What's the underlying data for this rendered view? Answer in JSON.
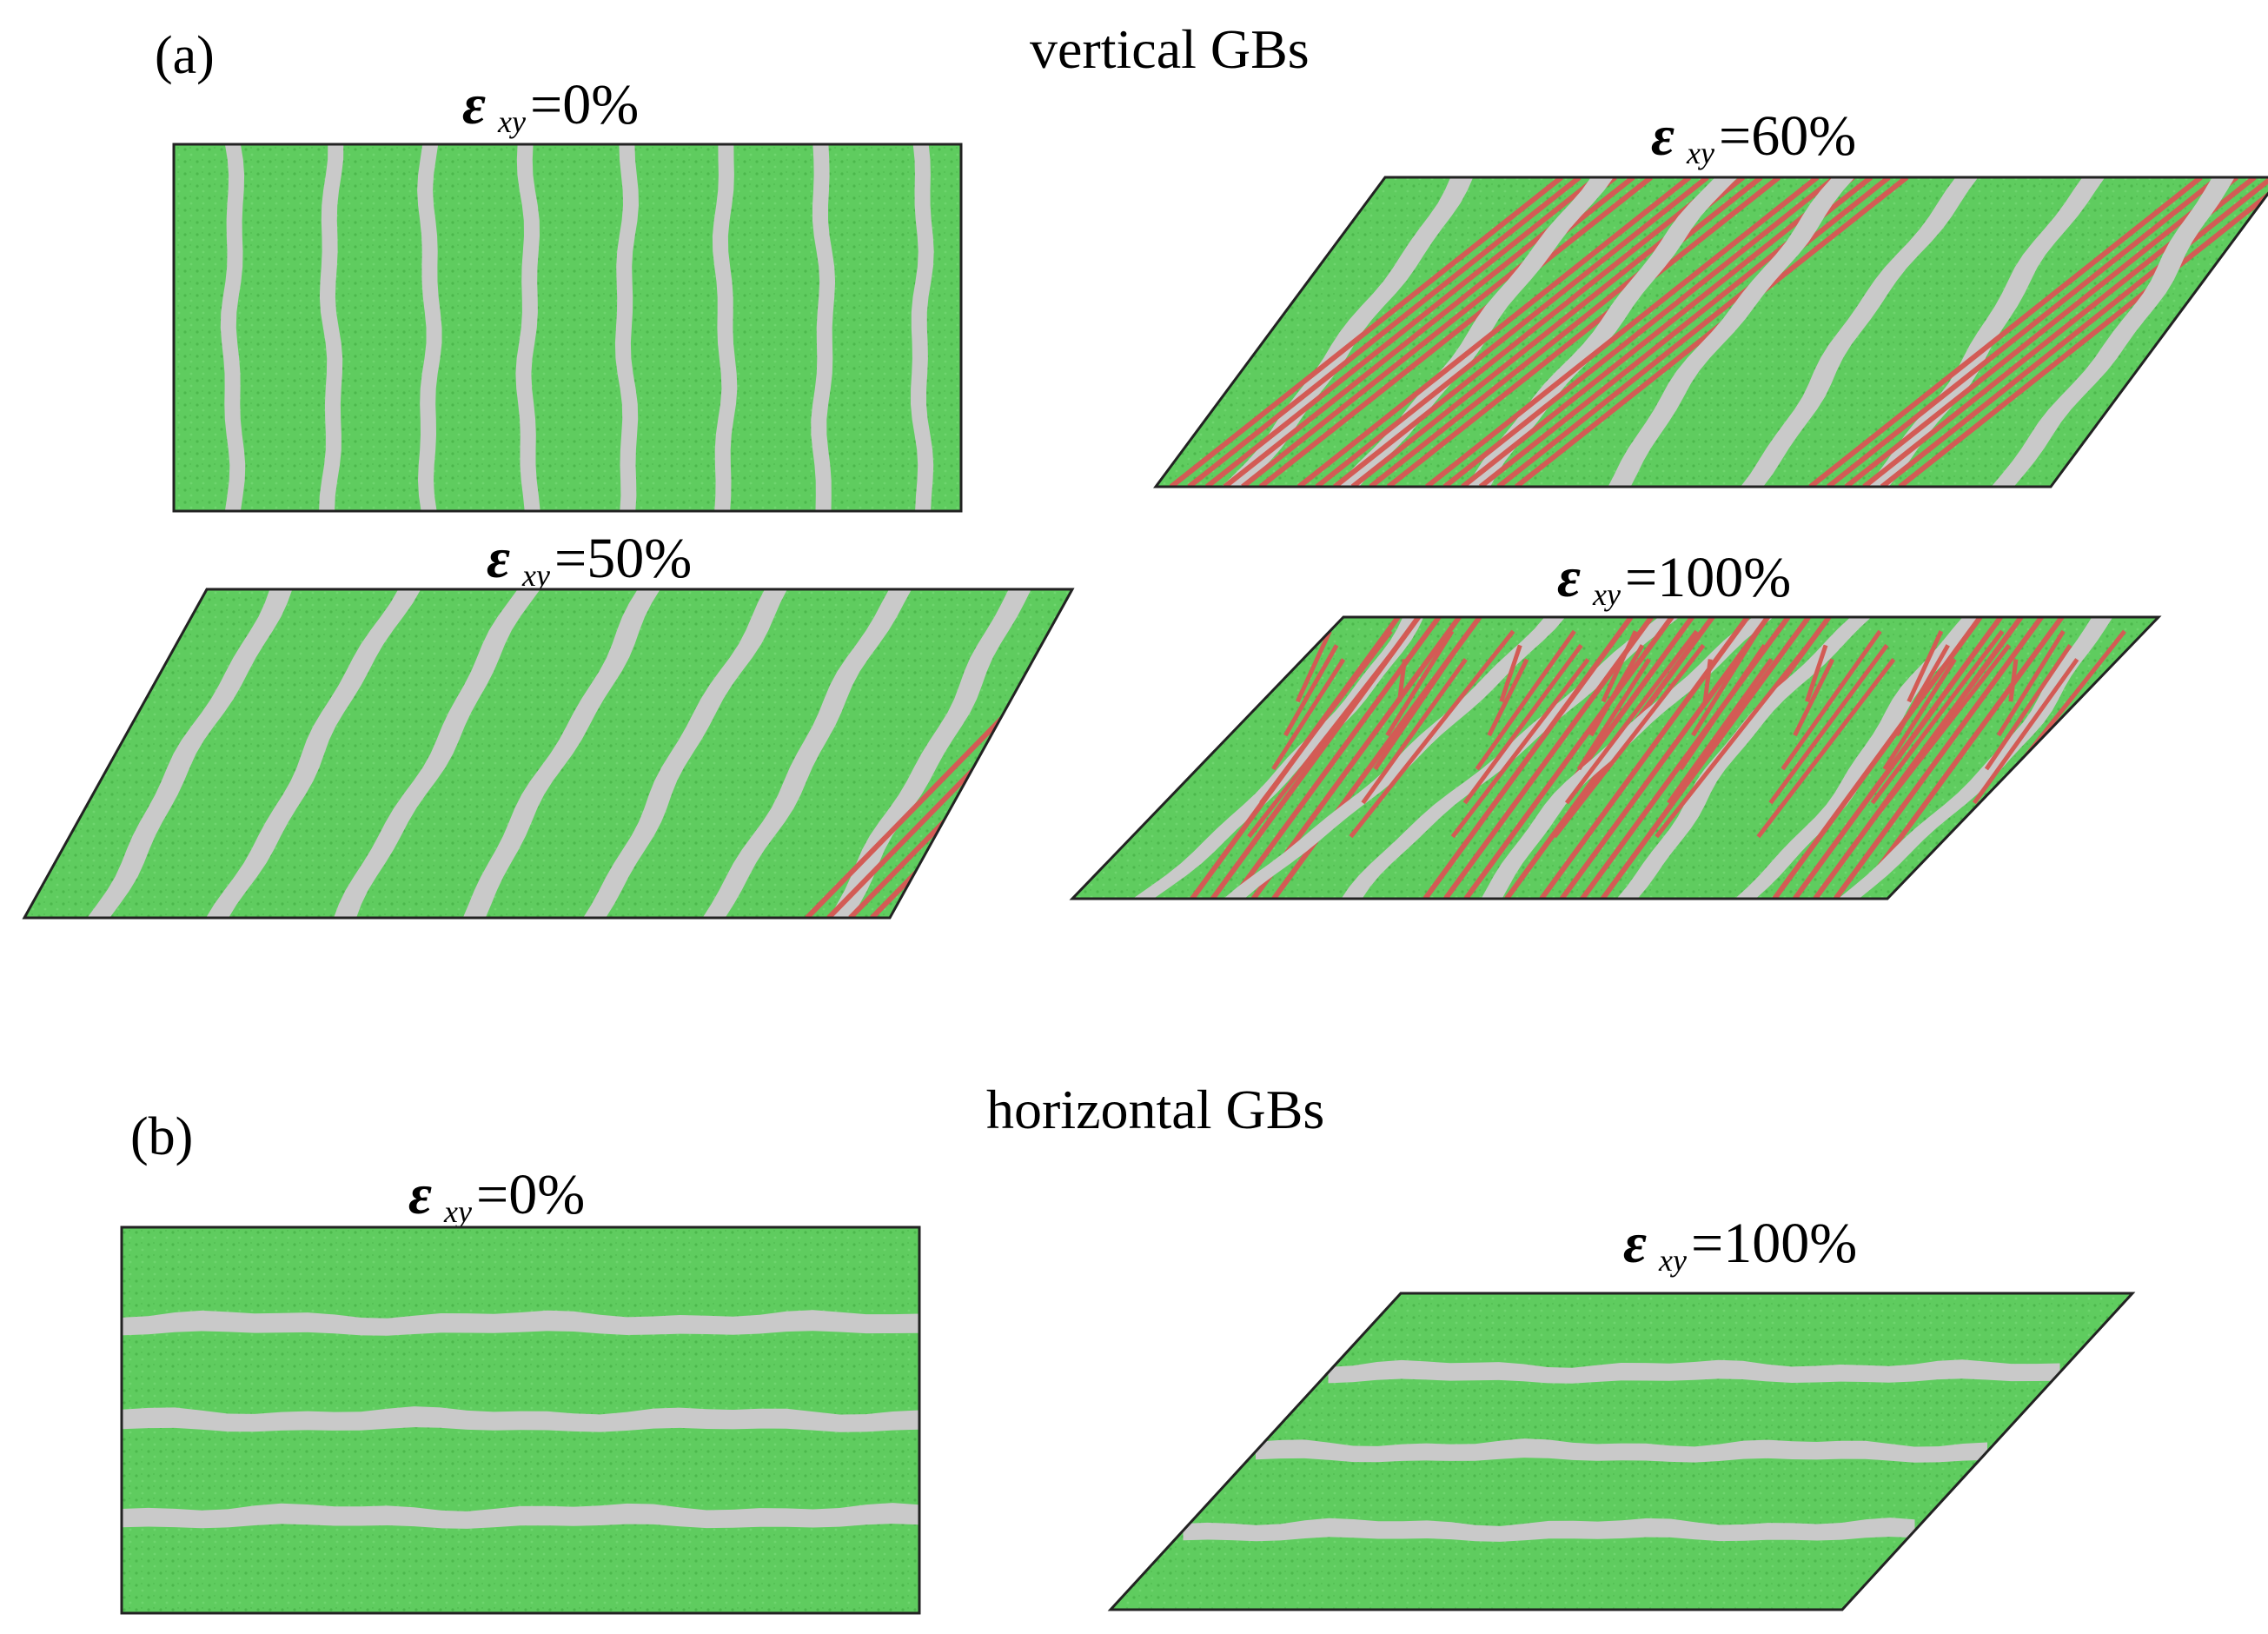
{
  "colors": {
    "grain": "#5ecb5e",
    "grain_shade": "#4fb84f",
    "boundary": "#c9c9c9",
    "twin": "#d35b55",
    "outline": "#222222"
  },
  "panel_a": {
    "letter": "(a)",
    "heading": "vertical GBs",
    "strain_symbol": "ε",
    "strain_subscript": "xy",
    "snapshots": [
      {
        "label": "=0%",
        "strain_percent": 0
      },
      {
        "label": "=50%",
        "strain_percent": 50
      },
      {
        "label": "=60%",
        "strain_percent": 60
      },
      {
        "label": "=100%",
        "strain_percent": 100
      }
    ]
  },
  "panel_b": {
    "letter": "(b)",
    "heading": "horizontal GBs",
    "strain_symbol": "ε",
    "strain_subscript": "xy",
    "snapshots": [
      {
        "label": "=0%",
        "strain_percent": 0
      },
      {
        "label": "=100%",
        "strain_percent": 100
      }
    ]
  }
}
